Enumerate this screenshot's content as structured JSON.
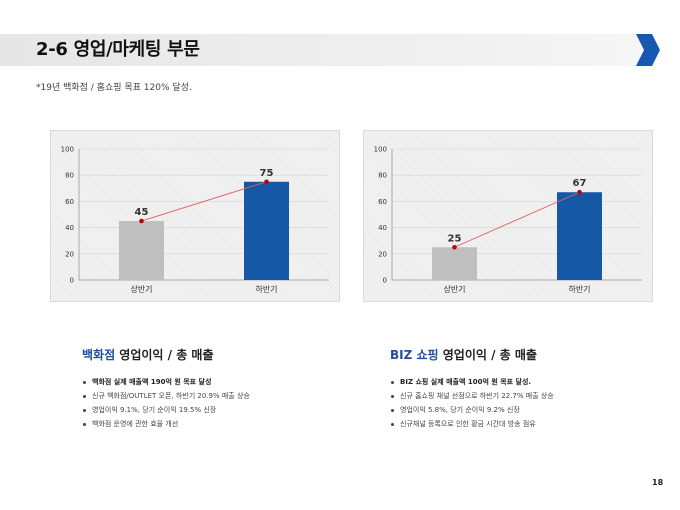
{
  "header": {
    "title": "2-6 영업/마케팅 부문",
    "subtitle": "*19년 백화점 / 홈쇼핑 목표 120% 달성.",
    "arrow_color": "#1559b0"
  },
  "chart_data": [
    {
      "type": "bar",
      "categories": [
        "상반기",
        "하반기"
      ],
      "values": [
        45,
        75
      ],
      "bar_colors": [
        "#bfbfbf",
        "#1559a6"
      ],
      "trend_line_color": "#e06060",
      "marker_color": "#c00000",
      "ylim": [
        0,
        100
      ],
      "yticks": [
        0,
        20,
        40,
        60,
        80,
        100
      ]
    },
    {
      "type": "bar",
      "categories": [
        "상반기",
        "하반기"
      ],
      "values": [
        25,
        67
      ],
      "bar_colors": [
        "#bfbfbf",
        "#1559a6"
      ],
      "trend_line_color": "#e06060",
      "marker_color": "#c00000",
      "ylim": [
        0,
        100
      ],
      "yticks": [
        0,
        20,
        40,
        60,
        80,
        100
      ]
    }
  ],
  "sections": [
    {
      "heading_accent": "백화점",
      "heading_rest": " 영업이익 / 총 매출",
      "bullets": [
        "백화점 실제 매출액 190억 원 목표 달성",
        "신규 백화점/OUTLET 오픈, 하반기 20.9% 매출 상승",
        "영업이익 9.1%, 당기 순이익 19.5% 신장",
        "백화점 운영에 관한 효율 개선"
      ]
    },
    {
      "heading_accent": "BIZ 쇼핑",
      "heading_rest": " 영업이익 / 총 매출",
      "bullets": [
        "BIZ 쇼핑 실제 매출액 100억 원 목표 달성.",
        "신규 홈쇼핑 채널 선점으로 하반기 22.7% 매출 상승",
        "영업이익 5.8%, 당기 순이익 9.2% 신장",
        "신규채널 등록으로 인한 황금 시간대 방송 점유"
      ]
    }
  ],
  "page_number": "18"
}
